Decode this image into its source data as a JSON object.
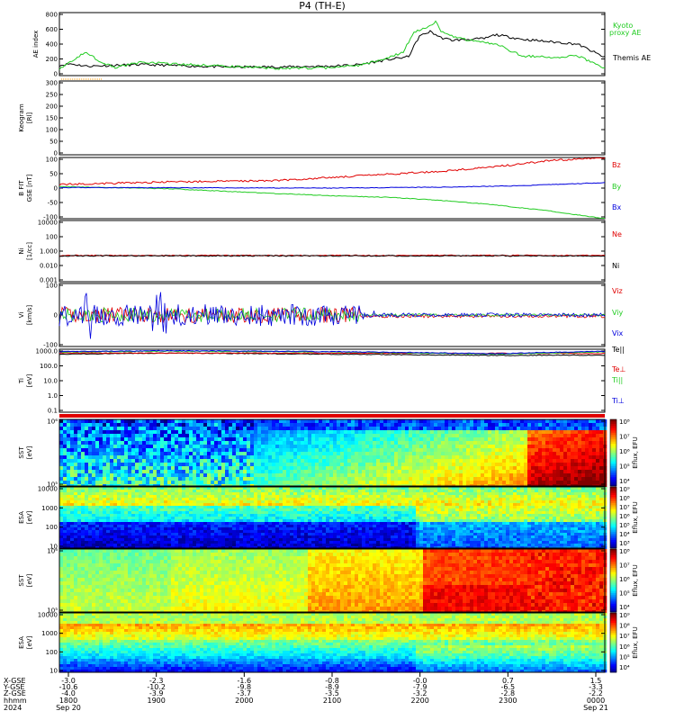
{
  "title": "P4 (TH-E)",
  "colors": {
    "black": "#000000",
    "red": "#e00000",
    "green": "#22cc22",
    "blue": "#0000dd",
    "orange": "#ff9900"
  },
  "chart_data": [
    {
      "id": "ae",
      "type": "line",
      "ylabel": "AE index",
      "ylim": [
        0,
        800
      ],
      "yticks": [
        "800",
        "600",
        "400",
        "200",
        "0"
      ],
      "legend": [
        "Kyoto",
        "proxy AE",
        "Themis AE"
      ],
      "series": [
        {
          "name": "Themis AE",
          "color": "black",
          "x": [
            0,
            0.02,
            0.05,
            0.1,
            0.15,
            0.2,
            0.3,
            0.4,
            0.5,
            0.55,
            0.6,
            0.64,
            0.66,
            0.68,
            0.7,
            0.72,
            0.75,
            0.78,
            0.8,
            0.85,
            0.9,
            0.95,
            1.0
          ],
          "y": [
            130,
            150,
            120,
            130,
            140,
            130,
            110,
            110,
            120,
            140,
            200,
            240,
            500,
            560,
            480,
            450,
            460,
            470,
            520,
            460,
            430,
            400,
            230
          ]
        },
        {
          "name": "Kyoto proxy AE",
          "color": "green",
          "x": [
            0,
            0.03,
            0.05,
            0.07,
            0.1,
            0.15,
            0.2,
            0.3,
            0.4,
            0.5,
            0.55,
            0.6,
            0.63,
            0.65,
            0.67,
            0.69,
            0.7,
            0.72,
            0.75,
            0.8,
            0.85,
            0.9,
            0.95,
            1.0
          ],
          "y": [
            90,
            220,
            300,
            200,
            100,
            170,
            150,
            120,
            90,
            100,
            130,
            220,
            300,
            550,
            600,
            680,
            560,
            500,
            450,
            400,
            250,
            230,
            250,
            100
          ]
        }
      ]
    },
    {
      "id": "kp",
      "type": "line",
      "ylabel": "Keogram",
      "ylabel2": "[Rl]",
      "ylim": [
        0,
        300
      ],
      "yticks": [
        "300",
        "250",
        "200",
        "150",
        "100",
        "50",
        "0"
      ]
    },
    {
      "id": "b",
      "type": "line",
      "ylabel": "B FIT",
      "ylabel2": "GSE [nT]",
      "ylim": [
        -100,
        100
      ],
      "yticks": [
        "100",
        "50",
        "0",
        "-50",
        "-100"
      ],
      "series": [
        {
          "name": "Bz",
          "color": "red",
          "x": [
            0,
            0.2,
            0.4,
            0.5,
            0.6,
            0.7,
            0.8,
            0.9,
            1.0
          ],
          "y": [
            12,
            20,
            25,
            35,
            45,
            55,
            70,
            90,
            100
          ]
        },
        {
          "name": "By",
          "color": "green",
          "x": [
            0,
            0.2,
            0.3,
            0.4,
            0.5,
            0.6,
            0.7,
            0.8,
            0.9,
            1.0
          ],
          "y": [
            5,
            -2,
            -10,
            -18,
            -25,
            -30,
            -40,
            -55,
            -75,
            -100
          ]
        },
        {
          "name": "Bx",
          "color": "blue",
          "x": [
            0,
            0.5,
            0.7,
            0.85,
            1.0
          ],
          "y": [
            2,
            0,
            3,
            8,
            18
          ]
        }
      ]
    },
    {
      "id": "ni",
      "type": "line",
      "ylabel": "Ni",
      "ylabel2": "[1/cc]",
      "scale": "log",
      "ylim": [
        0.001,
        10000
      ],
      "yticks": [
        "10000",
        "100",
        "1.000",
        "0.010",
        "0.001"
      ],
      "series": [
        {
          "name": "Ne",
          "color": "red",
          "x": [
            0,
            1
          ],
          "y": [
            1.0,
            1.0
          ]
        },
        {
          "name": "Ni",
          "color": "black",
          "x": [
            0,
            1
          ],
          "y": [
            0.9,
            0.9
          ]
        }
      ]
    },
    {
      "id": "vi",
      "type": "line",
      "ylabel": "Vi",
      "ylabel2": "[km/s]",
      "ylim": [
        -200,
        200
      ],
      "yticks": [
        "100",
        "0",
        "-100"
      ],
      "series": [
        {
          "name": "Viz",
          "color": "red"
        },
        {
          "name": "Viy",
          "color": "green"
        },
        {
          "name": "Vix",
          "color": "blue"
        }
      ]
    },
    {
      "id": "ti",
      "type": "line",
      "ylabel": "Ti",
      "ylabel2": "[eV]",
      "scale": "log",
      "ylim": [
        0.05,
        5000
      ],
      "yticks": [
        "1000.0",
        "100.0",
        "10.0",
        "1.0",
        "0.1"
      ],
      "series": [
        {
          "name": "Te||",
          "color": "black",
          "x": [
            0,
            0.2,
            0.5,
            0.8,
            1.0
          ],
          "y": [
            2000,
            2500,
            2000,
            1600,
            1700
          ]
        },
        {
          "name": "Te⊥",
          "color": "red",
          "x": [
            0,
            1
          ],
          "y": [
            2500,
            2300
          ]
        },
        {
          "name": "Ti||",
          "color": "green",
          "x": [
            0,
            0.2,
            0.5,
            0.8,
            1.0
          ],
          "y": [
            3000,
            3500,
            3000,
            2000,
            3000
          ]
        },
        {
          "name": "Ti⊥",
          "color": "blue",
          "x": [
            0,
            0.2,
            0.5,
            0.8,
            1.0
          ],
          "y": [
            3200,
            3800,
            3200,
            2200,
            3400
          ]
        }
      ]
    },
    {
      "id": "sst1",
      "type": "heatmap",
      "ylabel": "SST",
      "ylabel2": "[eV]",
      "yticks": [
        "10⁶",
        "10⁵"
      ],
      "cbar": [
        "10⁸",
        "10⁷",
        "10⁶",
        "10⁵",
        "10⁴"
      ],
      "cbar_label": "Eflux, EFU"
    },
    {
      "id": "esa1",
      "type": "heatmap",
      "ylabel": "ESA",
      "ylabel2": "[eV]",
      "yticks": [
        "10000",
        "1000",
        "100",
        "10"
      ],
      "cbar": [
        "10⁹",
        "10⁸",
        "10⁷",
        "10⁶",
        "10⁵",
        "10⁴",
        "10³"
      ],
      "cbar_label": "Eflux, EFU"
    },
    {
      "id": "sst2",
      "type": "heatmap",
      "ylabel": "SST",
      "ylabel2": "[eV]",
      "yticks": [
        "10⁶",
        "10⁵"
      ],
      "cbar": [
        "10⁸",
        "10⁷",
        "10⁶",
        "10⁵",
        "10⁴"
      ],
      "cbar_label": "Eflux, EFU"
    },
    {
      "id": "esa2",
      "type": "heatmap",
      "ylabel": "ESA",
      "ylabel2": "[eV]",
      "yticks": [
        "10000",
        "1000",
        "100",
        "10"
      ],
      "cbar": [
        "10⁹",
        "10⁸",
        "10⁷",
        "10⁶",
        "10⁵",
        "10⁴"
      ],
      "cbar_label": "Eflux, EFU"
    }
  ],
  "bottom_axis": {
    "row_labels": [
      "X-GSE",
      "Y-GSE",
      "Z-GSE",
      "hhmm",
      "2024"
    ],
    "columns": [
      [
        "-3.0",
        "-10.6",
        "-4.0",
        "1800",
        "Sep 20"
      ],
      [
        "-2.3",
        "-10.2",
        "-3.9",
        "1900",
        ""
      ],
      [
        "-1.6",
        "-9.8",
        "-3.7",
        "2000",
        ""
      ],
      [
        "-0.8",
        "-8.9",
        "-3.5",
        "2100",
        ""
      ],
      [
        "-0.0",
        "-7.9",
        "-3.2",
        "2200",
        ""
      ],
      [
        "0.7",
        "-6.5",
        "-2.8",
        "2300",
        ""
      ],
      [
        "1.5",
        "-3.3",
        "-2.2",
        "0000",
        "Sep 21"
      ]
    ]
  }
}
